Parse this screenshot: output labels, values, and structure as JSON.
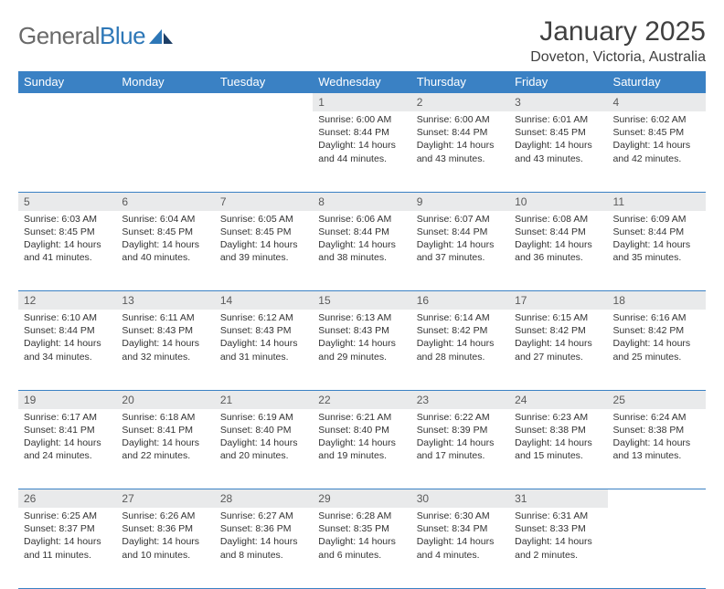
{
  "brand": {
    "part1": "General",
    "part2": "Blue"
  },
  "title": "January 2025",
  "location": "Doveton, Victoria, Australia",
  "colors": {
    "header_bg": "#3a81c4",
    "header_text": "#ffffff",
    "daynum_bg": "#e9eaeb",
    "border": "#3a81c4",
    "body_text": "#333333",
    "logo_gray": "#6a6a6a",
    "logo_blue": "#2d77b7",
    "page_bg": "#ffffff"
  },
  "fonts": {
    "title_size_pt": 22,
    "location_size_pt": 12,
    "header_size_pt": 10,
    "daynum_size_pt": 9,
    "body_size_pt": 8
  },
  "weekdays": [
    "Sunday",
    "Monday",
    "Tuesday",
    "Wednesday",
    "Thursday",
    "Friday",
    "Saturday"
  ],
  "weeks": [
    [
      null,
      null,
      null,
      {
        "n": "1",
        "sr": "Sunrise: 6:00 AM",
        "ss": "Sunset: 8:44 PM",
        "d1": "Daylight: 14 hours",
        "d2": "and 44 minutes."
      },
      {
        "n": "2",
        "sr": "Sunrise: 6:00 AM",
        "ss": "Sunset: 8:44 PM",
        "d1": "Daylight: 14 hours",
        "d2": "and 43 minutes."
      },
      {
        "n": "3",
        "sr": "Sunrise: 6:01 AM",
        "ss": "Sunset: 8:45 PM",
        "d1": "Daylight: 14 hours",
        "d2": "and 43 minutes."
      },
      {
        "n": "4",
        "sr": "Sunrise: 6:02 AM",
        "ss": "Sunset: 8:45 PM",
        "d1": "Daylight: 14 hours",
        "d2": "and 42 minutes."
      }
    ],
    [
      {
        "n": "5",
        "sr": "Sunrise: 6:03 AM",
        "ss": "Sunset: 8:45 PM",
        "d1": "Daylight: 14 hours",
        "d2": "and 41 minutes."
      },
      {
        "n": "6",
        "sr": "Sunrise: 6:04 AM",
        "ss": "Sunset: 8:45 PM",
        "d1": "Daylight: 14 hours",
        "d2": "and 40 minutes."
      },
      {
        "n": "7",
        "sr": "Sunrise: 6:05 AM",
        "ss": "Sunset: 8:45 PM",
        "d1": "Daylight: 14 hours",
        "d2": "and 39 minutes."
      },
      {
        "n": "8",
        "sr": "Sunrise: 6:06 AM",
        "ss": "Sunset: 8:44 PM",
        "d1": "Daylight: 14 hours",
        "d2": "and 38 minutes."
      },
      {
        "n": "9",
        "sr": "Sunrise: 6:07 AM",
        "ss": "Sunset: 8:44 PM",
        "d1": "Daylight: 14 hours",
        "d2": "and 37 minutes."
      },
      {
        "n": "10",
        "sr": "Sunrise: 6:08 AM",
        "ss": "Sunset: 8:44 PM",
        "d1": "Daylight: 14 hours",
        "d2": "and 36 minutes."
      },
      {
        "n": "11",
        "sr": "Sunrise: 6:09 AM",
        "ss": "Sunset: 8:44 PM",
        "d1": "Daylight: 14 hours",
        "d2": "and 35 minutes."
      }
    ],
    [
      {
        "n": "12",
        "sr": "Sunrise: 6:10 AM",
        "ss": "Sunset: 8:44 PM",
        "d1": "Daylight: 14 hours",
        "d2": "and 34 minutes."
      },
      {
        "n": "13",
        "sr": "Sunrise: 6:11 AM",
        "ss": "Sunset: 8:43 PM",
        "d1": "Daylight: 14 hours",
        "d2": "and 32 minutes."
      },
      {
        "n": "14",
        "sr": "Sunrise: 6:12 AM",
        "ss": "Sunset: 8:43 PM",
        "d1": "Daylight: 14 hours",
        "d2": "and 31 minutes."
      },
      {
        "n": "15",
        "sr": "Sunrise: 6:13 AM",
        "ss": "Sunset: 8:43 PM",
        "d1": "Daylight: 14 hours",
        "d2": "and 29 minutes."
      },
      {
        "n": "16",
        "sr": "Sunrise: 6:14 AM",
        "ss": "Sunset: 8:42 PM",
        "d1": "Daylight: 14 hours",
        "d2": "and 28 minutes."
      },
      {
        "n": "17",
        "sr": "Sunrise: 6:15 AM",
        "ss": "Sunset: 8:42 PM",
        "d1": "Daylight: 14 hours",
        "d2": "and 27 minutes."
      },
      {
        "n": "18",
        "sr": "Sunrise: 6:16 AM",
        "ss": "Sunset: 8:42 PM",
        "d1": "Daylight: 14 hours",
        "d2": "and 25 minutes."
      }
    ],
    [
      {
        "n": "19",
        "sr": "Sunrise: 6:17 AM",
        "ss": "Sunset: 8:41 PM",
        "d1": "Daylight: 14 hours",
        "d2": "and 24 minutes."
      },
      {
        "n": "20",
        "sr": "Sunrise: 6:18 AM",
        "ss": "Sunset: 8:41 PM",
        "d1": "Daylight: 14 hours",
        "d2": "and 22 minutes."
      },
      {
        "n": "21",
        "sr": "Sunrise: 6:19 AM",
        "ss": "Sunset: 8:40 PM",
        "d1": "Daylight: 14 hours",
        "d2": "and 20 minutes."
      },
      {
        "n": "22",
        "sr": "Sunrise: 6:21 AM",
        "ss": "Sunset: 8:40 PM",
        "d1": "Daylight: 14 hours",
        "d2": "and 19 minutes."
      },
      {
        "n": "23",
        "sr": "Sunrise: 6:22 AM",
        "ss": "Sunset: 8:39 PM",
        "d1": "Daylight: 14 hours",
        "d2": "and 17 minutes."
      },
      {
        "n": "24",
        "sr": "Sunrise: 6:23 AM",
        "ss": "Sunset: 8:38 PM",
        "d1": "Daylight: 14 hours",
        "d2": "and 15 minutes."
      },
      {
        "n": "25",
        "sr": "Sunrise: 6:24 AM",
        "ss": "Sunset: 8:38 PM",
        "d1": "Daylight: 14 hours",
        "d2": "and 13 minutes."
      }
    ],
    [
      {
        "n": "26",
        "sr": "Sunrise: 6:25 AM",
        "ss": "Sunset: 8:37 PM",
        "d1": "Daylight: 14 hours",
        "d2": "and 11 minutes."
      },
      {
        "n": "27",
        "sr": "Sunrise: 6:26 AM",
        "ss": "Sunset: 8:36 PM",
        "d1": "Daylight: 14 hours",
        "d2": "and 10 minutes."
      },
      {
        "n": "28",
        "sr": "Sunrise: 6:27 AM",
        "ss": "Sunset: 8:36 PM",
        "d1": "Daylight: 14 hours",
        "d2": "and 8 minutes."
      },
      {
        "n": "29",
        "sr": "Sunrise: 6:28 AM",
        "ss": "Sunset: 8:35 PM",
        "d1": "Daylight: 14 hours",
        "d2": "and 6 minutes."
      },
      {
        "n": "30",
        "sr": "Sunrise: 6:30 AM",
        "ss": "Sunset: 8:34 PM",
        "d1": "Daylight: 14 hours",
        "d2": "and 4 minutes."
      },
      {
        "n": "31",
        "sr": "Sunrise: 6:31 AM",
        "ss": "Sunset: 8:33 PM",
        "d1": "Daylight: 14 hours",
        "d2": "and 2 minutes."
      },
      null
    ]
  ]
}
